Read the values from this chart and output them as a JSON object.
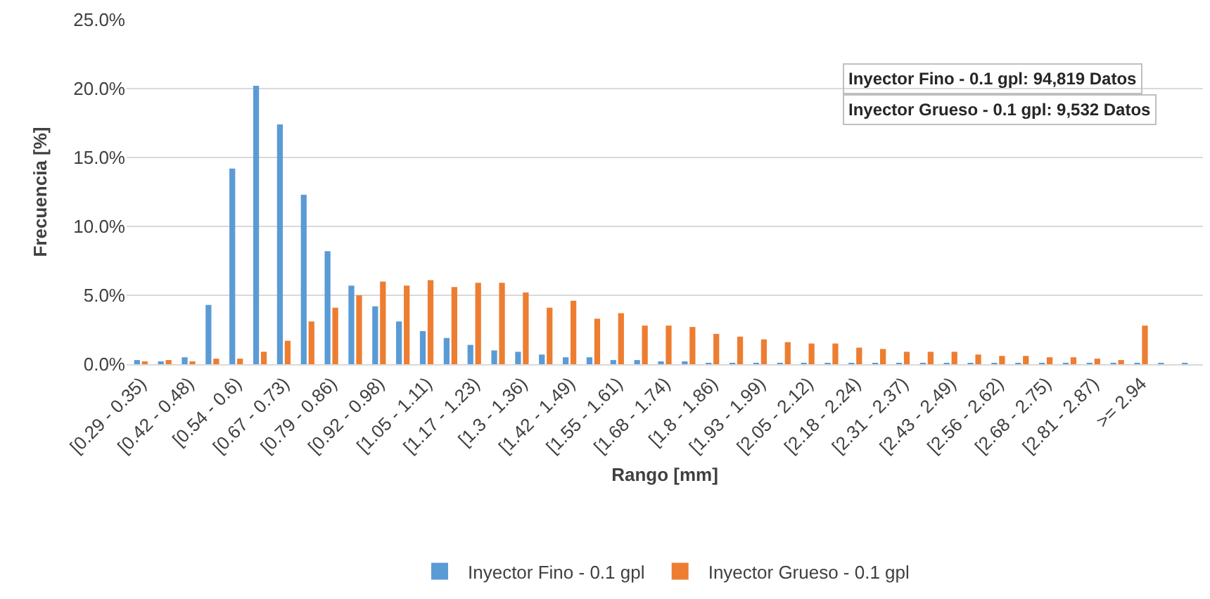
{
  "chart_data": {
    "type": "bar",
    "categories": [
      "[0.29 - 0.35)",
      null,
      "[0.42 - 0.48)",
      null,
      "[0.54 - 0.6)",
      null,
      "[0.67 - 0.73)",
      null,
      "[0.79 - 0.86)",
      null,
      "[0.92 - 0.98)",
      null,
      "[1.05 - 1.11)",
      null,
      "[1.17 - 1.23)",
      null,
      "[1.3 - 1.36)",
      null,
      "[1.42 - 1.49)",
      null,
      "[1.55 - 1.61)",
      null,
      "[1.68 - 1.74)",
      null,
      "[1.8 - 1.86)",
      null,
      "[1.93 - 1.99)",
      null,
      "[2.05 - 2.12)",
      null,
      "[2.18 - 2.24)",
      null,
      "[2.31 - 2.37)",
      null,
      "[2.43 - 2.49)",
      null,
      "[2.56 - 2.62)",
      null,
      "[2.68 - 2.75)",
      null,
      "[2.81 - 2.87)",
      null,
      ">= 2.94",
      null,
      null
    ],
    "series": [
      {
        "name": "Inyector Fino - 0.1 gpl",
        "color": "#5b9bd5",
        "values": [
          0.3,
          0.2,
          0.5,
          4.3,
          14.2,
          20.2,
          17.4,
          12.3,
          8.2,
          5.7,
          4.2,
          3.1,
          2.4,
          1.9,
          1.4,
          1.0,
          0.9,
          0.7,
          0.5,
          0.5,
          0.3,
          0.3,
          0.2,
          0.2,
          0.1,
          0.1,
          0.05,
          0.05,
          0.05,
          0.05,
          0.05,
          0.05,
          0.05,
          0.05,
          0.05,
          0.05,
          0.05,
          0.05,
          0.05,
          0.05,
          0.05,
          0.05,
          0.05,
          0.05,
          0.05
        ]
      },
      {
        "name": "Inyector Grueso - 0.1 gpl",
        "color": "#ed7d31",
        "values": [
          0.2,
          0.3,
          0.2,
          0.4,
          0.4,
          0.9,
          1.7,
          3.1,
          4.1,
          5.0,
          6.0,
          5.7,
          6.1,
          5.6,
          5.9,
          5.9,
          5.2,
          4.1,
          4.6,
          3.3,
          3.7,
          2.8,
          2.8,
          2.7,
          2.2,
          2.0,
          1.8,
          1.6,
          1.5,
          1.5,
          1.2,
          1.1,
          0.9,
          0.9,
          0.9,
          0.7,
          0.6,
          0.6,
          0.5,
          0.5,
          0.4,
          0.3,
          2.8,
          0,
          0
        ]
      }
    ],
    "ylim": [
      0,
      25
    ],
    "yticks": [
      {
        "value": 0,
        "label": "0.0%"
      },
      {
        "value": 5,
        "label": "5.0%"
      },
      {
        "value": 10,
        "label": "10.0%"
      },
      {
        "value": 15,
        "label": "15.0%"
      },
      {
        "value": 20,
        "label": "20.0%"
      },
      {
        "value": 25,
        "label": "25.0%"
      }
    ],
    "xlabel": "Rango [mm]",
    "ylabel": "Frecuencia [%]",
    "annotations": [
      "Inyector Fino - 0.1 gpl: 94,819 Datos",
      "Inyector Grueso - 0.1 gpl: 9,532 Datos"
    ],
    "grid": "y",
    "legend": "bottom"
  }
}
